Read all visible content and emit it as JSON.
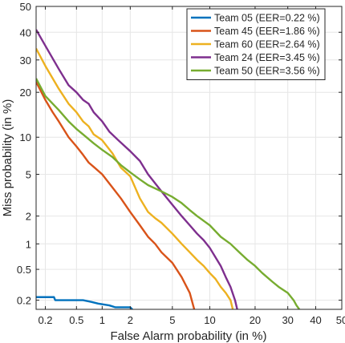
{
  "chart_data": {
    "type": "line",
    "scale": "normal-deviate (DET)",
    "xlabel": "False Alarm probability (in %)",
    "ylabel": "Miss probability (in %)",
    "xlim": [
      0.15,
      50
    ],
    "ylim": [
      0.15,
      50
    ],
    "x_ticks": [
      "0.2",
      "0.5",
      "1",
      "2",
      "5",
      "10",
      "20",
      "30",
      "40",
      "50"
    ],
    "y_ticks": [
      "0.2",
      "0.5",
      "1",
      "2",
      "5",
      "10",
      "20",
      "30",
      "40",
      "50"
    ],
    "grid": true,
    "legend_position": "top-right",
    "series": [
      {
        "name": "Team 05 (EER=0.22 %)",
        "color": "#0072BD",
        "points": [
          [
            0.15,
            0.22
          ],
          [
            0.26,
            0.22
          ],
          [
            0.27,
            0.2
          ],
          [
            0.6,
            0.2
          ],
          [
            0.75,
            0.19
          ],
          [
            0.9,
            0.18
          ],
          [
            1.2,
            0.17
          ],
          [
            1.4,
            0.16
          ],
          [
            2.0,
            0.16
          ],
          [
            2.1,
            0.15
          ]
        ]
      },
      {
        "name": "Team 45 (EER=1.86 %)",
        "color": "#D95319",
        "points": [
          [
            0.15,
            23
          ],
          [
            0.2,
            18
          ],
          [
            0.25,
            15
          ],
          [
            0.3,
            13
          ],
          [
            0.4,
            10
          ],
          [
            0.5,
            8.5
          ],
          [
            0.6,
            7.3
          ],
          [
            0.7,
            6.3
          ],
          [
            0.8,
            5.8
          ],
          [
            1,
            5
          ],
          [
            1.3,
            3.8
          ],
          [
            1.6,
            3
          ],
          [
            2,
            2.2
          ],
          [
            2.5,
            1.6
          ],
          [
            3,
            1.2
          ],
          [
            3.5,
            1
          ],
          [
            4,
            0.8
          ],
          [
            5,
            0.6
          ],
          [
            6,
            0.4
          ],
          [
            7,
            0.25
          ],
          [
            7.6,
            0.15
          ]
        ]
      },
      {
        "name": "Team 60 (EER=2.64 %)",
        "color": "#EDB120",
        "points": [
          [
            0.15,
            34
          ],
          [
            0.2,
            28
          ],
          [
            0.3,
            21
          ],
          [
            0.4,
            17
          ],
          [
            0.5,
            15
          ],
          [
            0.6,
            13
          ],
          [
            0.7,
            12
          ],
          [
            0.8,
            10.5
          ],
          [
            1,
            9.5
          ],
          [
            1.3,
            7.5
          ],
          [
            1.6,
            5.7
          ],
          [
            2,
            4.8
          ],
          [
            2.5,
            3
          ],
          [
            3,
            2.2
          ],
          [
            3.5,
            1.9
          ],
          [
            4,
            1.7
          ],
          [
            5,
            1.3
          ],
          [
            6,
            1
          ],
          [
            7,
            0.8
          ],
          [
            8,
            0.65
          ],
          [
            9,
            0.55
          ],
          [
            10,
            0.45
          ],
          [
            11,
            0.38
          ],
          [
            12,
            0.3
          ],
          [
            13,
            0.25
          ],
          [
            14,
            0.2
          ],
          [
            14.5,
            0.15
          ]
        ]
      },
      {
        "name": "Team 24 (EER=3.45 %)",
        "color": "#7E2F8E",
        "points": [
          [
            0.15,
            41
          ],
          [
            0.2,
            35
          ],
          [
            0.3,
            27
          ],
          [
            0.4,
            22
          ],
          [
            0.5,
            20
          ],
          [
            0.6,
            18
          ],
          [
            0.7,
            17
          ],
          [
            0.8,
            15
          ],
          [
            1,
            13
          ],
          [
            1.2,
            11
          ],
          [
            1.5,
            9.5
          ],
          [
            2,
            7.8
          ],
          [
            2.5,
            6.5
          ],
          [
            3,
            5
          ],
          [
            4,
            3.5
          ],
          [
            5,
            2.6
          ],
          [
            6,
            2
          ],
          [
            7,
            1.6
          ],
          [
            8,
            1.3
          ],
          [
            9,
            1.1
          ],
          [
            10,
            0.9
          ],
          [
            11,
            0.7
          ],
          [
            12,
            0.55
          ],
          [
            13,
            0.4
          ],
          [
            14,
            0.3
          ],
          [
            15,
            0.2
          ],
          [
            15.5,
            0.15
          ]
        ]
      },
      {
        "name": "Team 50 (EER=3.56 %)",
        "color": "#77AC30",
        "points": [
          [
            0.15,
            24
          ],
          [
            0.2,
            19
          ],
          [
            0.3,
            15.5
          ],
          [
            0.4,
            13
          ],
          [
            0.5,
            11.5
          ],
          [
            0.6,
            10.5
          ],
          [
            0.8,
            9
          ],
          [
            1,
            8
          ],
          [
            1.3,
            7
          ],
          [
            1.6,
            6
          ],
          [
            2,
            5.2
          ],
          [
            2.5,
            4.5
          ],
          [
            3,
            4
          ],
          [
            4,
            3.5
          ],
          [
            5,
            3.1
          ],
          [
            6,
            2.7
          ],
          [
            7,
            2.3
          ],
          [
            8,
            2
          ],
          [
            10,
            1.6
          ],
          [
            12,
            1.2
          ],
          [
            14,
            1
          ],
          [
            16,
            0.8
          ],
          [
            18,
            0.65
          ],
          [
            20,
            0.55
          ],
          [
            22,
            0.45
          ],
          [
            25,
            0.35
          ],
          [
            27,
            0.3
          ],
          [
            30,
            0.25
          ],
          [
            32,
            0.2
          ],
          [
            33,
            0.17
          ],
          [
            34,
            0.15
          ]
        ]
      }
    ]
  }
}
